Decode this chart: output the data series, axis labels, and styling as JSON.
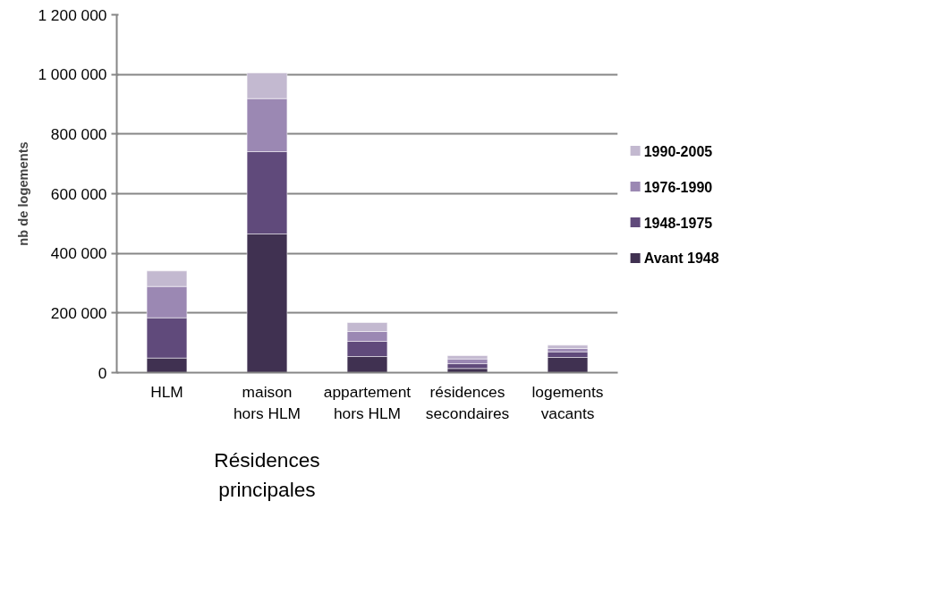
{
  "chart_data": {
    "type": "bar",
    "stacked": true,
    "categories": [
      "HLM",
      "maison\nhors HLM",
      "appartement\nhors HLM",
      "résidences\nsecondaires",
      "logements\nvacants"
    ],
    "ylabel": "nb de logements",
    "series": [
      {
        "name": "Avant 1948",
        "color": "#403151",
        "values": [
          49000,
          465000,
          54000,
          14000,
          51000
        ]
      },
      {
        "name": "1948-1975",
        "color": "#604a7b",
        "values": [
          135000,
          276000,
          51000,
          16000,
          19000
        ]
      },
      {
        "name": "1976-1990",
        "color": "#9b88b3",
        "values": [
          105000,
          178000,
          33000,
          16000,
          11000
        ]
      },
      {
        "name": "1990-2005",
        "color": "#c3b9d0",
        "values": [
          52000,
          86000,
          30000,
          11000,
          11000
        ]
      }
    ],
    "ylim": [
      0,
      1200000
    ],
    "yticks": [
      {
        "value": 0,
        "label": "0"
      },
      {
        "value": 200000,
        "label": "200 000"
      },
      {
        "value": 400000,
        "label": "400 000"
      },
      {
        "value": 600000,
        "label": "600 000"
      },
      {
        "value": 800000,
        "label": "800 000"
      },
      {
        "value": 1000000,
        "label": "1 000 000"
      },
      {
        "value": 1200000,
        "label": "1 200 000"
      }
    ],
    "grid": "y",
    "legend": "right",
    "annotations": [
      "Résidences principales"
    ]
  }
}
